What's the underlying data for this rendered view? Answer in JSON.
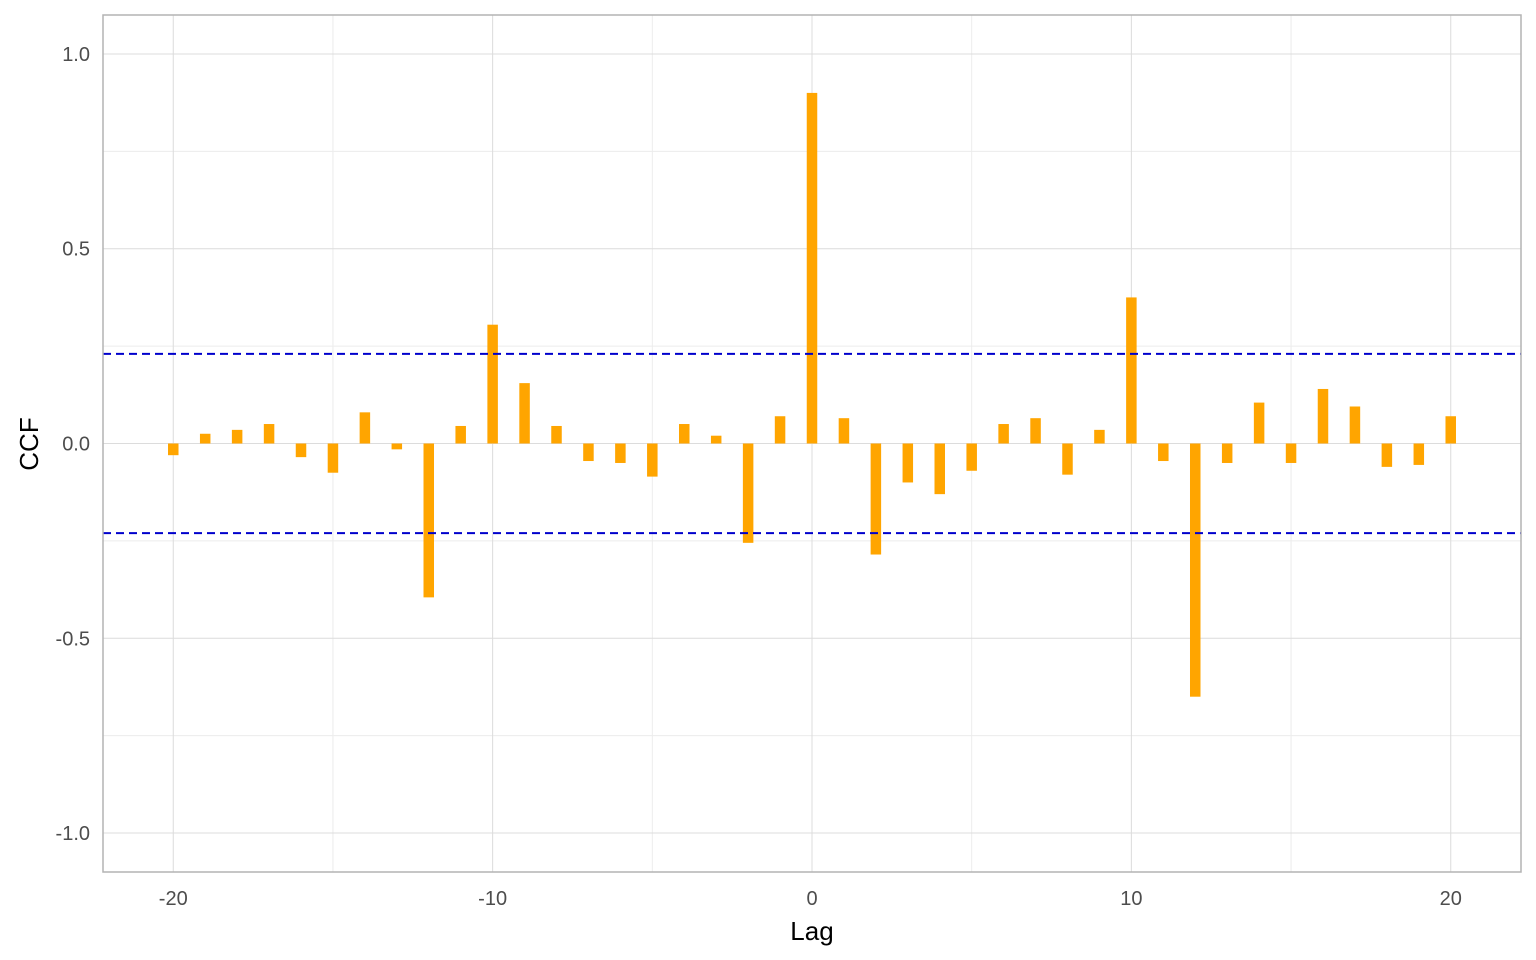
{
  "chart_data": {
    "type": "bar",
    "title": "",
    "xlabel": "Lag",
    "ylabel": "CCF",
    "xlim": [
      -22.2,
      22.2
    ],
    "ylim": [
      -1.1,
      1.1
    ],
    "x_ticks": [
      -20,
      -10,
      0,
      10,
      20
    ],
    "x_tick_labels": [
      "-20",
      "-10",
      "0",
      "10",
      "20"
    ],
    "y_ticks": [
      -1.0,
      -0.5,
      0.0,
      0.5,
      1.0
    ],
    "y_tick_labels": [
      "-1.0",
      "-0.5",
      "0.0",
      "0.5",
      "1.0"
    ],
    "grid": true,
    "bar_color": "#FFA500",
    "ci_color": "#0000CC",
    "ci_upper": 0.23,
    "ci_lower": -0.23,
    "x": [
      -20,
      -19,
      -18,
      -17,
      -16,
      -15,
      -14,
      -13,
      -12,
      -11,
      -10,
      -9,
      -8,
      -7,
      -6,
      -5,
      -4,
      -3,
      -2,
      -1,
      0,
      1,
      2,
      3,
      4,
      5,
      6,
      7,
      8,
      9,
      10,
      11,
      12,
      13,
      14,
      15,
      16,
      17,
      18,
      19,
      20
    ],
    "values": [
      -0.03,
      0.025,
      0.035,
      0.05,
      -0.035,
      -0.075,
      0.08,
      -0.015,
      -0.395,
      0.045,
      0.305,
      0.155,
      0.045,
      -0.045,
      -0.05,
      -0.085,
      0.05,
      0.02,
      -0.255,
      0.07,
      0.9,
      0.065,
      -0.285,
      -0.1,
      -0.13,
      -0.07,
      0.05,
      0.065,
      -0.08,
      0.035,
      0.375,
      -0.045,
      -0.65,
      -0.05,
      0.105,
      -0.05,
      0.14,
      0.095,
      -0.06,
      -0.055,
      0.07
    ]
  }
}
